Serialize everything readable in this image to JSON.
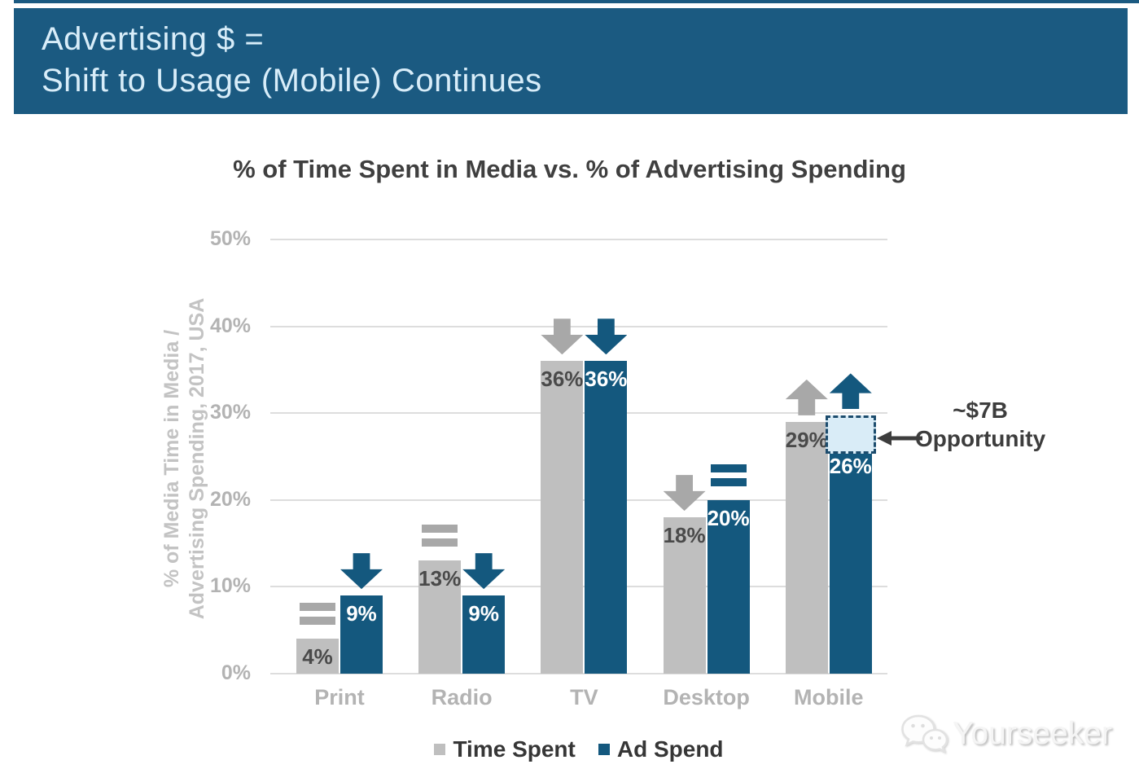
{
  "header": {
    "line1": "Advertising $ =",
    "line2": "Shift to Usage (Mobile) Continues"
  },
  "chart_data": {
    "type": "bar",
    "title": "% of Time Spent in Media vs. % of Advertising Spending",
    "ylabel_line1": "% of Media Time in Media /",
    "ylabel_line2": "Advertising Spending, 2017, USA",
    "categories": [
      "Print",
      "Radio",
      "TV",
      "Desktop",
      "Mobile"
    ],
    "series": [
      {
        "name": "Time Spent",
        "color": "#bfbfbf",
        "indicator_color": "#a8a8a8",
        "label_color": "#4a4a4a",
        "values": [
          4,
          13,
          36,
          18,
          29
        ],
        "labels": [
          "4%",
          "13%",
          "36%",
          "18%",
          "29%"
        ],
        "trends": [
          "flat",
          "flat",
          "down",
          "down",
          "up"
        ]
      },
      {
        "name": "Ad Spend",
        "color": "#14587e",
        "indicator_color": "#14587e",
        "label_color": "#ffffff",
        "values": [
          9,
          9,
          36,
          20,
          26
        ],
        "labels": [
          "9%",
          "9%",
          "36%",
          "20%",
          "26%"
        ],
        "trends": [
          "down",
          "down",
          "down",
          "flat",
          "up"
        ]
      }
    ],
    "ylim": [
      0,
      50
    ],
    "yticks": [
      {
        "value": 50,
        "label": "50%"
      },
      {
        "value": 40,
        "label": "40%"
      },
      {
        "value": 30,
        "label": "30%"
      },
      {
        "value": 20,
        "label": "20%"
      },
      {
        "value": 10,
        "label": "10%"
      },
      {
        "value": 0,
        "label": "0%"
      }
    ],
    "grid": true,
    "legend_position": "bottom",
    "annotation": {
      "category": "Mobile",
      "series": "Ad Spend",
      "gap_from_pct": 26,
      "gap_to_pct": 29.7,
      "line1": "~$7B",
      "line2": "Opportunity"
    }
  },
  "legend": {
    "items": [
      {
        "label": "Time Spent",
        "color": "#bfbfbf"
      },
      {
        "label": "Ad Spend",
        "color": "#14587e"
      }
    ]
  },
  "colors": {
    "banner_bg": "#1b5a81",
    "banner_text": "#d8edf9",
    "bar_gray": "#bfbfbf",
    "bar_blue": "#14587e",
    "opportunity_fill": "#d9ecf7",
    "opportunity_border": "#1c4c6d",
    "grid_line": "#dddddd",
    "axis_text": "#b3b3b3",
    "title_text": "#3f3f3f"
  },
  "watermark": {
    "text": "Yourseeker",
    "icon": "wechat-chat-bubbles-icon"
  }
}
